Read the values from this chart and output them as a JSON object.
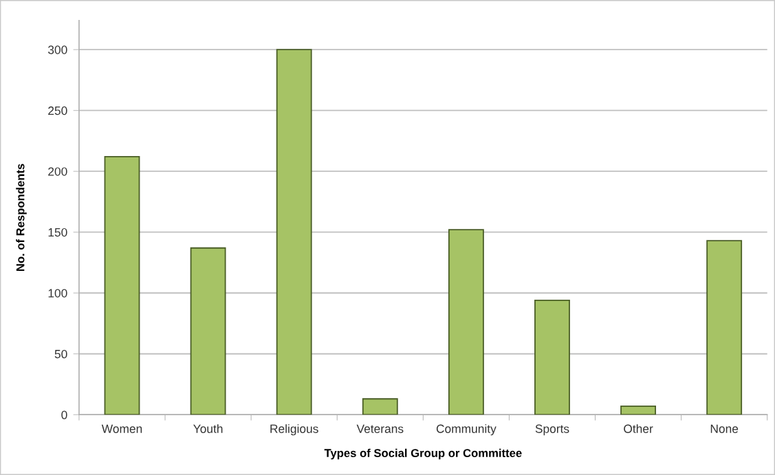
{
  "chart_data": {
    "type": "bar",
    "xlabel": "Types of Social Group or Committee",
    "ylabel": "No. of Respondents",
    "categories": [
      "Women",
      "Youth",
      "Religious",
      "Veterans",
      "Community",
      "Sports",
      "Other",
      "None"
    ],
    "values": [
      212,
      137,
      300,
      13,
      152,
      94,
      7,
      143
    ],
    "color": "#a6c365",
    "ylim": [
      0,
      324
    ],
    "yticks": [
      0,
      50,
      100,
      150,
      200,
      250,
      300
    ],
    "grid": "y"
  }
}
